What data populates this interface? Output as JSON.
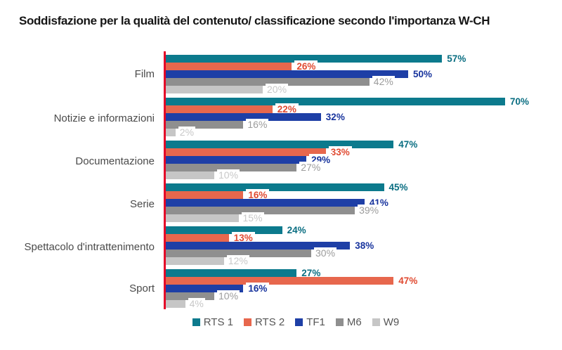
{
  "title": "Soddisfazione per la qualità del contenuto/ classificazione secondo l'importanza W-CH",
  "chart_data": {
    "type": "bar",
    "orientation": "horizontal",
    "title": "Soddisfazione per la qualità del contenuto/ classificazione secondo l'importanza W-CH",
    "categories": [
      "Film",
      "Notizie e informazioni",
      "Documentazione",
      "Serie",
      "Spettacolo d'intrattenimento",
      "Sport"
    ],
    "series": [
      {
        "name": "RTS 1",
        "color": "#0c7a8d",
        "label_color": "#0a6e82",
        "values": [
          57,
          70,
          47,
          45,
          24,
          27
        ]
      },
      {
        "name": "RTS 2",
        "color": "#e7674d",
        "label_color": "#e04a31",
        "values": [
          26,
          22,
          33,
          16,
          13,
          47
        ]
      },
      {
        "name": "TF1",
        "color": "#1e3fa6",
        "label_color": "#17339d",
        "values": [
          50,
          32,
          29,
          41,
          38,
          16
        ]
      },
      {
        "name": "M6",
        "color": "#8f8f8f",
        "label_color": "#9c9c9c",
        "values": [
          42,
          16,
          27,
          39,
          30,
          10
        ]
      },
      {
        "name": "W9",
        "color": "#c6c6c6",
        "label_color": "#c8c8c8",
        "values": [
          20,
          2,
          10,
          15,
          12,
          4
        ]
      }
    ],
    "value_suffix": "%",
    "xlim": [
      0,
      72
    ],
    "axis_color": "#e40428",
    "grid": false,
    "legend_position": "bottom",
    "value_labels": true
  }
}
